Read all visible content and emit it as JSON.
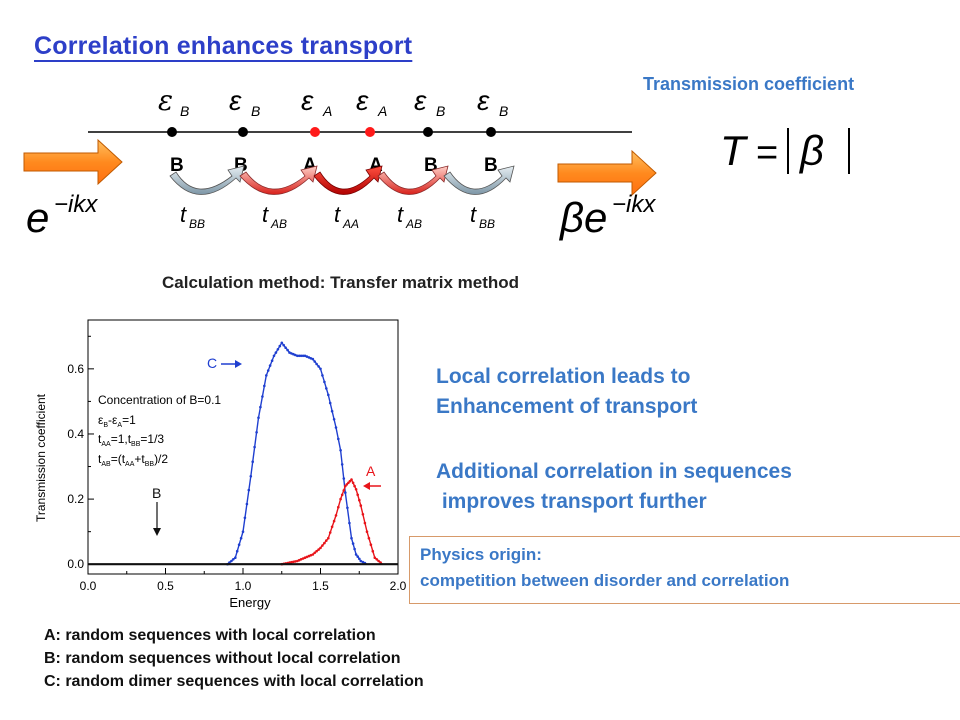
{
  "title": "Correlation enhances transport",
  "diagram": {
    "epsilon_subs": [
      "B",
      "B",
      "A",
      "A",
      "B",
      "B"
    ],
    "site_labels": [
      "B",
      "B",
      "A",
      "A",
      "B",
      "B"
    ],
    "hopping_subs": [
      "BB",
      "AB",
      "AA",
      "AB",
      "BB"
    ],
    "incoming_wave": "e^{-ikx}",
    "outgoing_wave": "βe^{-ikx}",
    "colors": {
      "A_site": "#ff1a1a",
      "B_site": "#000000",
      "arrow_orange": "#ff8a1e"
    }
  },
  "transmission_label": "Transmission coefficient",
  "formula": "T = |β|",
  "method_text": "Calculation method: Transfer matrix method",
  "chart_data": {
    "type": "scatter",
    "xlabel": "Energy",
    "ylabel": "Transmission coefficient",
    "xlim": [
      0.0,
      2.0
    ],
    "ylim": [
      -0.03,
      0.75
    ],
    "x_ticks": [
      "0.0",
      "0.5",
      "1.0",
      "1.5",
      "2.0"
    ],
    "y_ticks": [
      "0.0",
      "0.2",
      "0.4",
      "0.6"
    ],
    "legend_lines": [
      "Concentration of B=0.1",
      "ε_B-ε_A=1",
      "t_AA=1,t_BB=1/3",
      "t_AB=(t_AA+t_BB)/2"
    ],
    "annotations": [
      "C",
      "A",
      "B"
    ],
    "series": [
      {
        "name": "C",
        "color": "#1f3fd0",
        "x": [
          0.0,
          0.9,
          0.95,
          1.0,
          1.05,
          1.1,
          1.15,
          1.2,
          1.25,
          1.3,
          1.35,
          1.4,
          1.45,
          1.5,
          1.55,
          1.6,
          1.63,
          1.66,
          1.7,
          1.73,
          1.76,
          1.8,
          2.0
        ],
        "y": [
          0.0,
          0.0,
          0.02,
          0.1,
          0.27,
          0.45,
          0.58,
          0.64,
          0.68,
          0.65,
          0.64,
          0.64,
          0.63,
          0.6,
          0.52,
          0.42,
          0.35,
          0.22,
          0.08,
          0.03,
          0.01,
          0.0,
          0.0
        ]
      },
      {
        "name": "A",
        "color": "#e8141a",
        "x": [
          0.0,
          1.25,
          1.3,
          1.35,
          1.4,
          1.45,
          1.5,
          1.55,
          1.6,
          1.63,
          1.66,
          1.68,
          1.7,
          1.73,
          1.76,
          1.8,
          1.85,
          1.9,
          2.0
        ],
        "y": [
          0.0,
          0.0,
          0.005,
          0.01,
          0.02,
          0.03,
          0.05,
          0.08,
          0.15,
          0.2,
          0.24,
          0.25,
          0.26,
          0.23,
          0.18,
          0.1,
          0.02,
          0.0,
          0.0
        ]
      },
      {
        "name": "B",
        "color": "#111111",
        "x": [
          0.0,
          2.0
        ],
        "y": [
          0.0,
          0.0
        ]
      }
    ]
  },
  "local_lines": [
    "Local correlation leads to",
    "Enhancement of transport"
  ],
  "additional_lines": [
    "Additional correlation in sequences",
    " improves transport further"
  ],
  "physics_lines": [
    "Physics origin:",
    "competition between disorder and correlation"
  ],
  "legend_list": [
    "A: random sequences with local correlation",
    "B: random sequences without local correlation",
    "C: random dimer sequences with local correlation"
  ]
}
